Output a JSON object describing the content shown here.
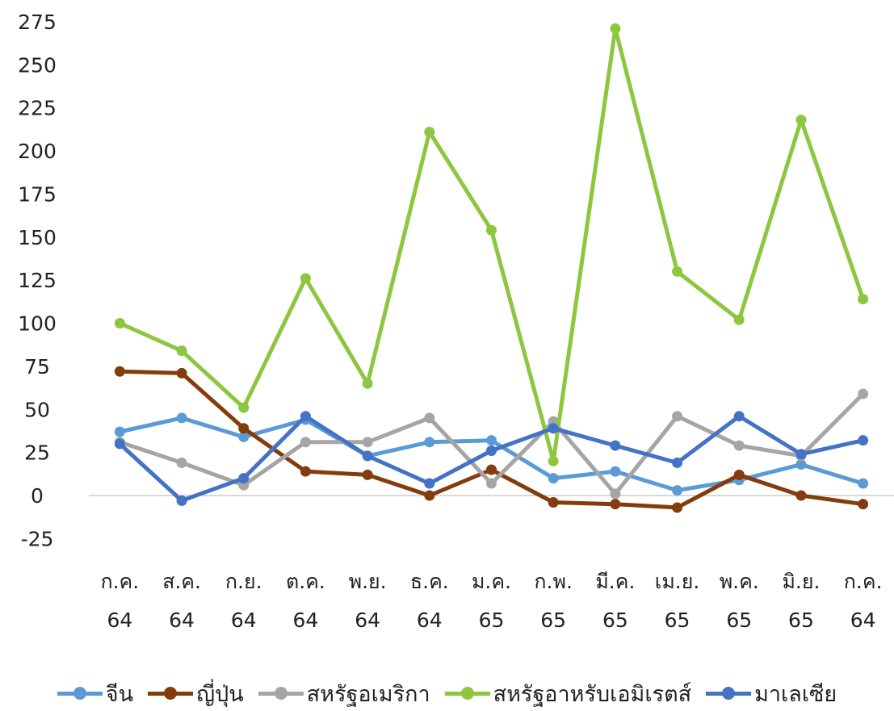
{
  "chart_data": {
    "type": "line",
    "categories": [
      [
        "ก.ค.",
        "64"
      ],
      [
        "ส.ค.",
        "64"
      ],
      [
        "ก.ย.",
        "64"
      ],
      [
        "ต.ค.",
        "64"
      ],
      [
        "พ.ย.",
        "64"
      ],
      [
        "ธ.ค.",
        "64"
      ],
      [
        "ม.ค.",
        "65"
      ],
      [
        "ก.พ.",
        "65"
      ],
      [
        "มี.ค.",
        "65"
      ],
      [
        "เม.ย.",
        "65"
      ],
      [
        "พ.ค.",
        "65"
      ],
      [
        "มิ.ย.",
        "65"
      ],
      [
        "ก.ค.",
        "64"
      ]
    ],
    "ylim": [
      -25,
      275
    ],
    "yticks": [
      -25,
      0,
      25,
      50,
      75,
      100,
      125,
      150,
      175,
      200,
      225,
      250,
      275
    ],
    "ytick_labels": [
      "-25",
      "0",
      "25",
      "50",
      "75",
      "100",
      "125",
      "150",
      "175",
      "200",
      "225",
      "250",
      "275"
    ],
    "grid": false,
    "zero_line": true,
    "legend_position": "bottom",
    "series": [
      {
        "name": "จีน",
        "color": "#5B9BD5",
        "values": [
          37,
          45,
          34,
          44,
          23,
          31,
          32,
          10,
          14,
          3,
          9,
          18,
          7
        ]
      },
      {
        "name": "ญี่ปุ่น",
        "color": "#843C0C",
        "values": [
          72,
          71,
          39,
          14,
          12,
          0,
          15,
          -4,
          -5,
          -7,
          12,
          0,
          -5
        ]
      },
      {
        "name": "สหรัฐอเมริกา",
        "color": "#A5A5A5",
        "values": [
          31,
          19,
          6,
          31,
          31,
          45,
          7,
          43,
          1,
          46,
          29,
          23,
          59
        ]
      },
      {
        "name": "สหรัฐอาหรับเอมิเรตส์",
        "color": "#8DC63F",
        "values": [
          100,
          84,
          51,
          126,
          65,
          211,
          154,
          20,
          271,
          130,
          102,
          218,
          114
        ]
      },
      {
        "name": "มาเลเซีย",
        "color": "#4472C4",
        "values": [
          30,
          -3,
          10,
          46,
          23,
          7,
          26,
          39,
          29,
          19,
          46,
          24,
          32
        ]
      }
    ]
  }
}
